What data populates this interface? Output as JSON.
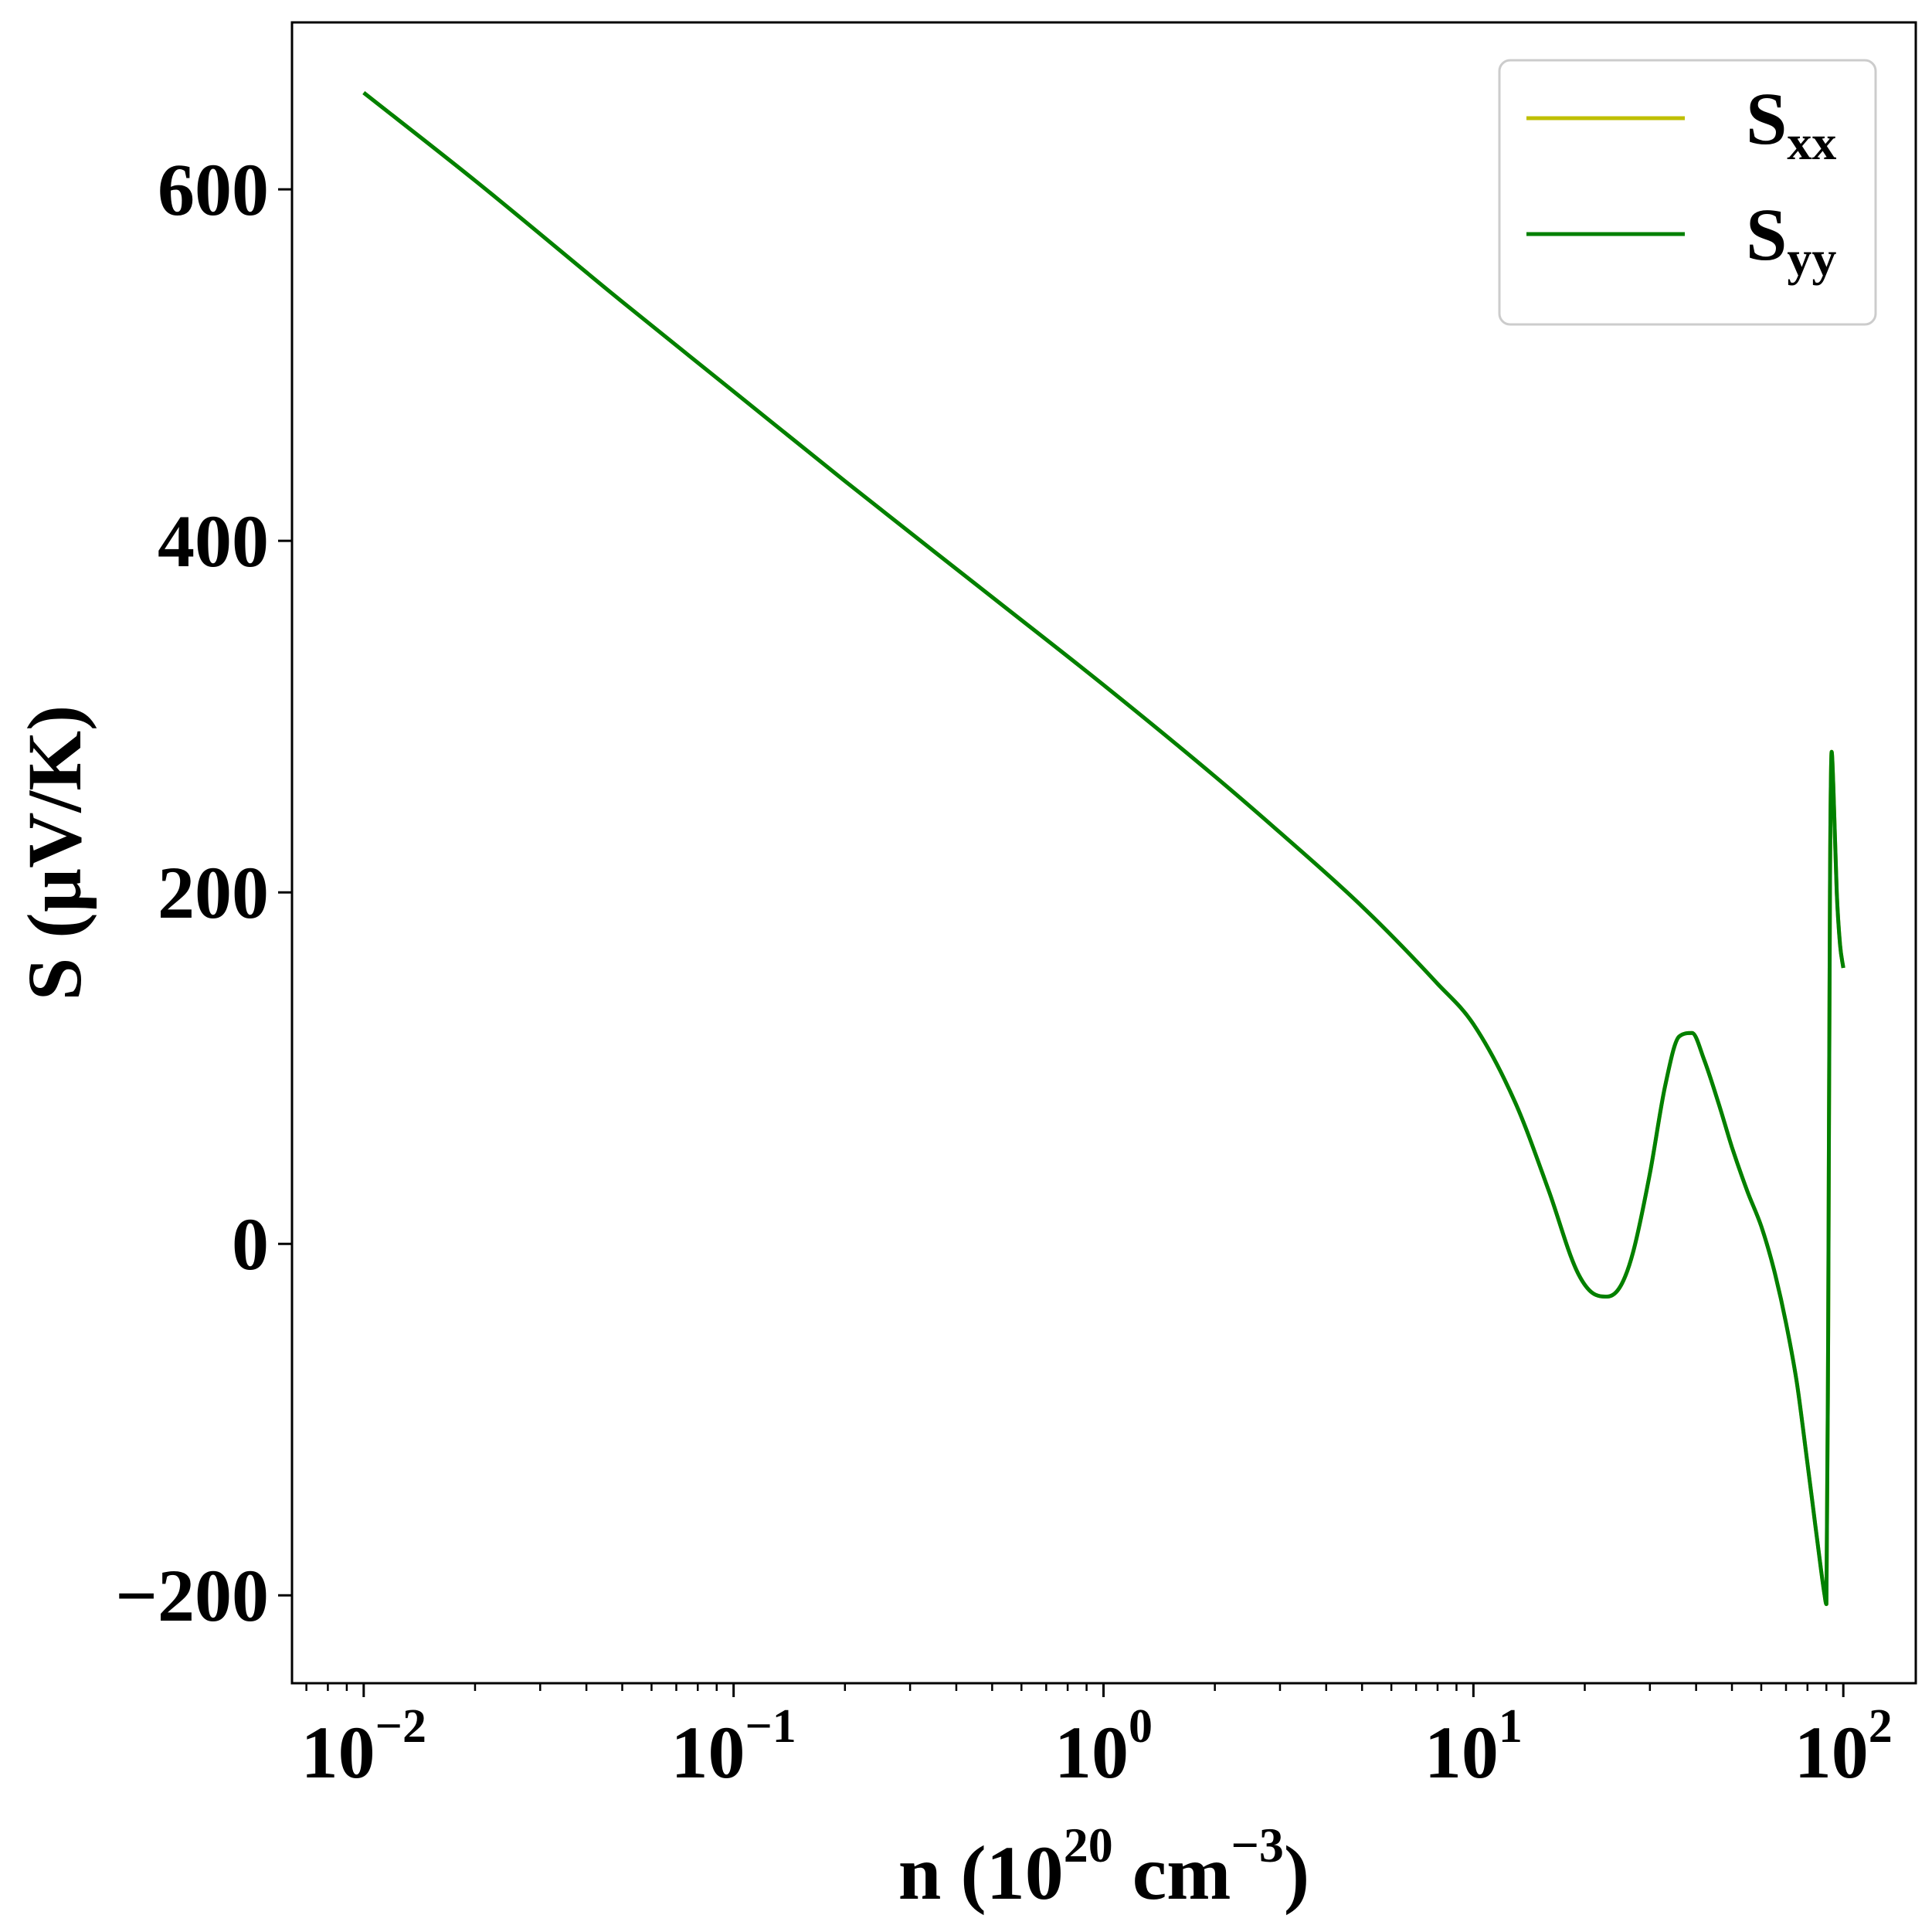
{
  "chart_data": {
    "type": "line",
    "title": "",
    "xlabel": {
      "prefix": "n (10",
      "exp": "20",
      "mid": " cm",
      "exp2": "−3",
      "suffix": ")"
    },
    "ylabel": "S (µV/K)",
    "xscale": "log",
    "xlim": [
      0.0064,
      157
    ],
    "ylim": [
      -250,
      695
    ],
    "grid": false,
    "legend_position": "top-right",
    "x_ticks": [
      {
        "base": "10",
        "exp": "−2",
        "value": 0.01
      },
      {
        "base": "10",
        "exp": "−1",
        "value": 0.1
      },
      {
        "base": "10",
        "exp": "0",
        "value": 1
      },
      {
        "base": "10",
        "exp": "1",
        "value": 10
      },
      {
        "base": "10",
        "exp": "2",
        "value": 100
      }
    ],
    "y_ticks": [
      {
        "label": "−200",
        "value": -200
      },
      {
        "label": "0",
        "value": 0
      },
      {
        "label": "200",
        "value": 200
      },
      {
        "label": "400",
        "value": 400
      },
      {
        "label": "600",
        "value": 600
      }
    ],
    "series": [
      {
        "name": "S",
        "name_sub": "xx",
        "color": "#bfbf00",
        "x": [
          0.01,
          0.02,
          0.05,
          0.1,
          0.2,
          0.5,
          1,
          2,
          3,
          5,
          8,
          10,
          13,
          16,
          19,
          21,
          23,
          25,
          27,
          30,
          33,
          36,
          39,
          42,
          46,
          50,
          55,
          60,
          65,
          70,
          75,
          80,
          84,
          87,
          89,
          90,
          91,
          92,
          93,
          94,
          96,
          98,
          100
        ],
        "y": [
          655,
          605,
          536,
          485,
          434,
          368,
          318,
          266,
          234,
          192,
          148,
          125,
          80,
          30,
          -15,
          -28,
          -30,
          -24,
          -5,
          40,
          90,
          118,
          120,
          105,
          80,
          55,
          30,
          10,
          -15,
          -45,
          -80,
          -125,
          -160,
          -185,
          -200,
          -205,
          -50,
          200,
          280,
          260,
          200,
          170,
          157
        ]
      },
      {
        "name": "S",
        "name_sub": "yy",
        "color": "#008000",
        "x": [
          0.01,
          0.02,
          0.05,
          0.1,
          0.2,
          0.5,
          1,
          2,
          3,
          5,
          8,
          10,
          13,
          16,
          19,
          21,
          23,
          25,
          27,
          30,
          33,
          36,
          39,
          42,
          46,
          50,
          55,
          60,
          65,
          70,
          75,
          80,
          84,
          87,
          89,
          90,
          91,
          92,
          93,
          94,
          96,
          98,
          100
        ],
        "y": [
          655,
          605,
          536,
          485,
          434,
          368,
          318,
          266,
          234,
          192,
          148,
          125,
          80,
          30,
          -15,
          -28,
          -30,
          -24,
          -5,
          40,
          90,
          118,
          120,
          105,
          80,
          55,
          30,
          10,
          -15,
          -45,
          -80,
          -125,
          -160,
          -185,
          -200,
          -205,
          -50,
          200,
          280,
          260,
          200,
          170,
          157
        ]
      }
    ]
  }
}
